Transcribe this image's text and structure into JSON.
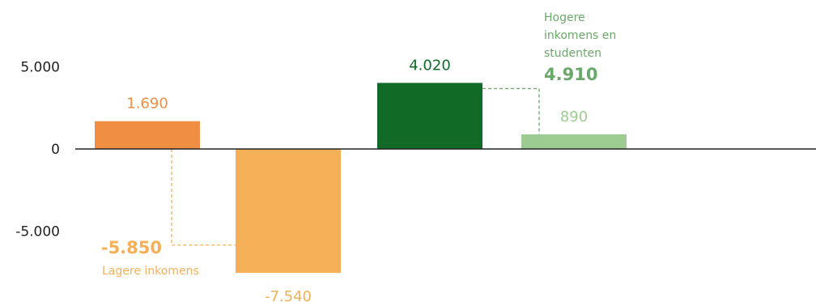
{
  "chart_data": {
    "type": "bar",
    "ylim": [
      -8000,
      8000
    ],
    "y_ticks": [
      {
        "value": 5000,
        "label": "5.000"
      },
      {
        "value": 0,
        "label": "0"
      },
      {
        "value": -5000,
        "label": "-5.000"
      }
    ],
    "bars": [
      {
        "value": 1690,
        "label": "1.690",
        "color": "#f08f43",
        "label_color": "#f08f43"
      },
      {
        "value": -7540,
        "label": "-7.540",
        "color": "#f5b057",
        "label_color": "#f5b057"
      },
      {
        "value": 4020,
        "label": "4.020",
        "color": "#116b27",
        "label_color": "#116b27"
      },
      {
        "value": 890,
        "label": "890",
        "color": "#9dcc93",
        "label_color": "#9dcc93"
      }
    ],
    "annotations": [
      {
        "total": "-5.850",
        "total_value": -5850,
        "group": [
          "Lagere inkomens"
        ],
        "color": "#f5b057"
      },
      {
        "total": "4.910",
        "total_value": 4910,
        "group": [
          "Hogere",
          "inkomens en",
          "studenten"
        ],
        "color": "#6aa869"
      }
    ]
  }
}
